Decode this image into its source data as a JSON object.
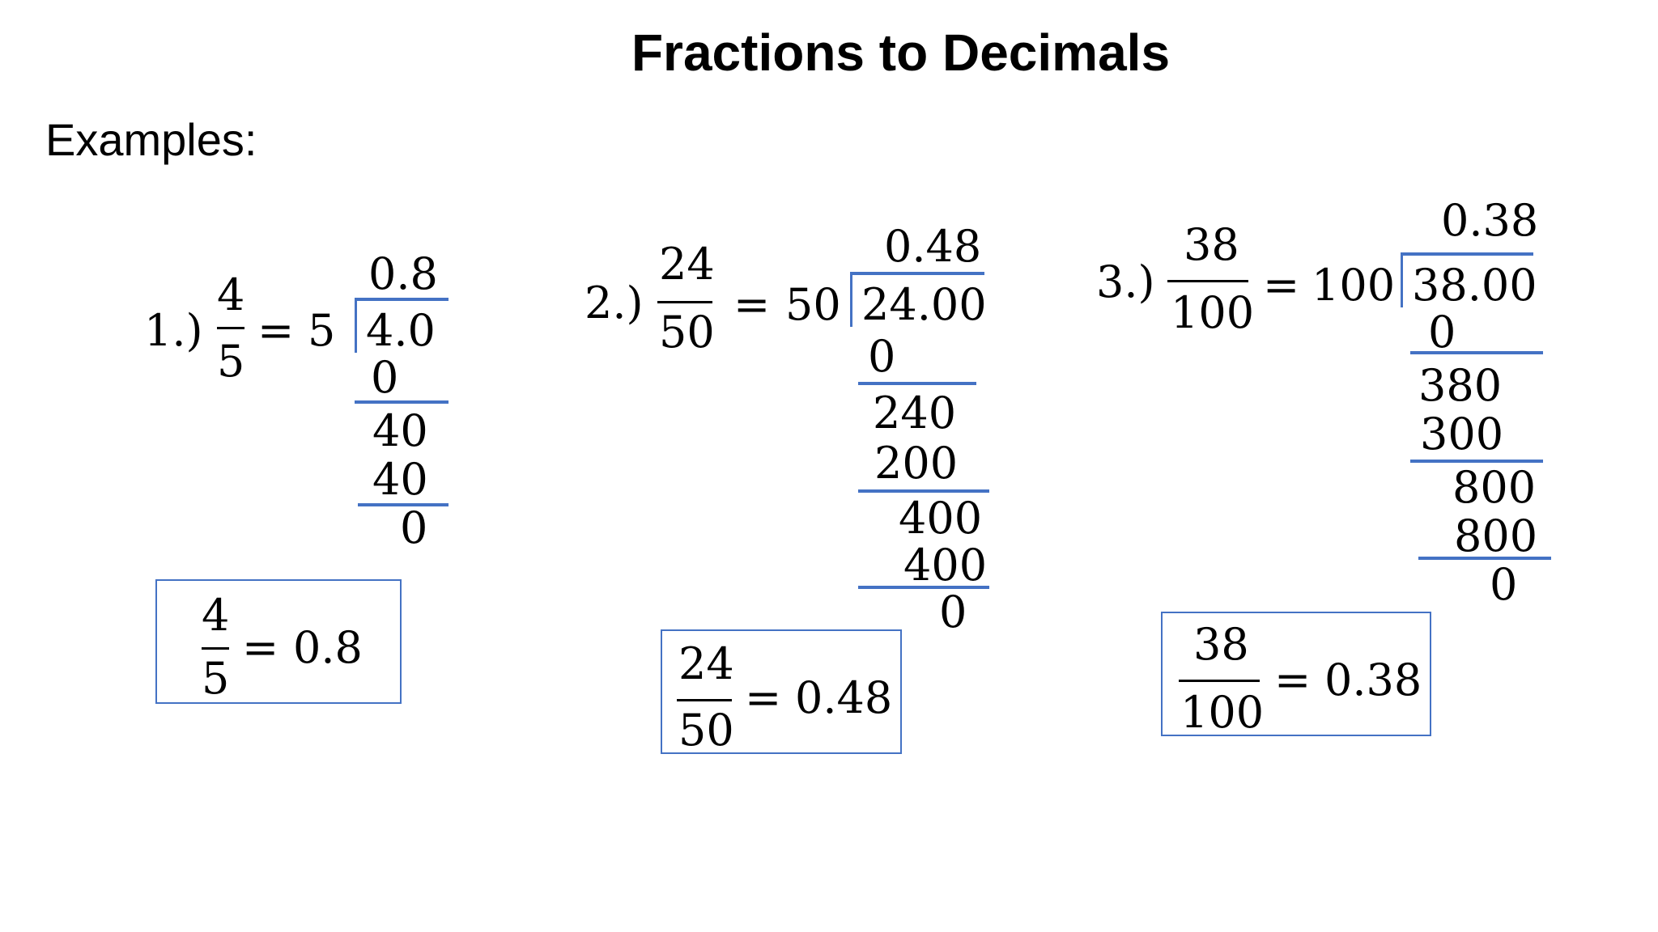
{
  "title": "Fractions to Decimals",
  "subtitle": "Examples:",
  "examples": [
    {
      "label": "1.)",
      "numerator": "4",
      "denominator": "5",
      "equals": "=",
      "divisor": "5",
      "quotient": "0.8",
      "dividend": "4.0",
      "steps": [
        "0",
        "40",
        "40",
        "0"
      ],
      "result": {
        "numerator": "4",
        "denominator": "5",
        "equals": "=",
        "value": "0.8"
      }
    },
    {
      "label": "2.)",
      "numerator": "24",
      "denominator": "50",
      "equals": "=",
      "divisor": "50",
      "quotient": "0.48",
      "dividend": "24.00",
      "steps": [
        "0",
        "240",
        "200",
        "400",
        "400",
        "0"
      ],
      "result": {
        "numerator": "24",
        "denominator": "50",
        "equals": "=",
        "value": "0.48"
      }
    },
    {
      "label": "3.)",
      "numerator": "38",
      "denominator": "100",
      "equals": "=",
      "divisor": "100",
      "quotient": "0.38",
      "dividend": "38.00",
      "steps": [
        "0",
        "380",
        "300",
        "800",
        "800",
        "0"
      ],
      "result": {
        "numerator": "38",
        "denominator": "100",
        "equals": "=",
        "value": "0.38"
      }
    }
  ]
}
